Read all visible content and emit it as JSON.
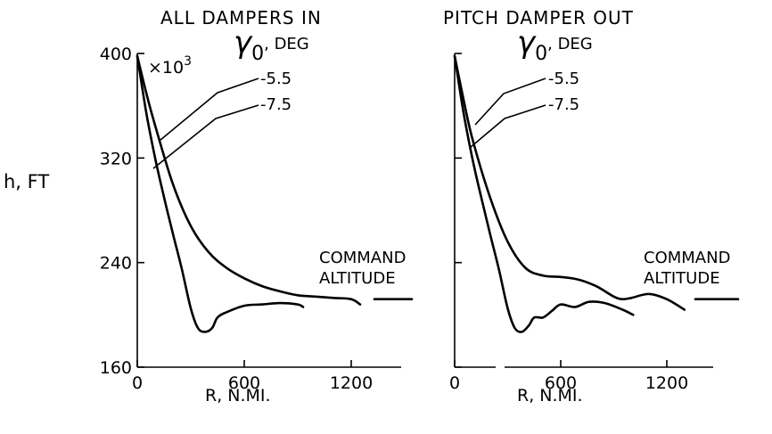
{
  "y_axis": {
    "label": "h, FT",
    "multiplier": "×10",
    "multiplier_exp": "3"
  },
  "legend": {
    "gamma_symbol": "γ",
    "gamma_sub": "0",
    "gamma_unit": ", DEG",
    "values": [
      "-5.5",
      "-7.5"
    ]
  },
  "command_altitude": {
    "line1": "COMMAND",
    "line2": "ALTITUDE"
  },
  "chart_data": [
    {
      "type": "line",
      "title": "ALL DAMPERS IN",
      "xlabel": "R, N.MI.",
      "ylabel": "h, FT",
      "xlim": [
        0,
        1500
      ],
      "ylim": [
        160,
        400
      ],
      "x_ticks": [
        0,
        600,
        1200
      ],
      "y_ticks": [
        160,
        240,
        320,
        400
      ],
      "command_altitude_value": 212,
      "series": [
        {
          "name": "-5.5",
          "points": [
            [
              0,
              398
            ],
            [
              50,
              370
            ],
            [
              100,
              345
            ],
            [
              200,
              300
            ],
            [
              300,
              268
            ],
            [
              400,
              248
            ],
            [
              500,
              236
            ],
            [
              600,
              228
            ],
            [
              700,
              222
            ],
            [
              800,
              218
            ],
            [
              900,
              215
            ],
            [
              1000,
              214
            ],
            [
              1100,
              213
            ],
            [
              1200,
              212
            ],
            [
              1250,
              208
            ]
          ]
        },
        {
          "name": "-7.5",
          "points": [
            [
              0,
              398
            ],
            [
              50,
              355
            ],
            [
              100,
              320
            ],
            [
              150,
              290
            ],
            [
              200,
              262
            ],
            [
              250,
              235
            ],
            [
              300,
              205
            ],
            [
              340,
              190
            ],
            [
              380,
              187
            ],
            [
              420,
              190
            ],
            [
              450,
              198
            ],
            [
              500,
              202
            ],
            [
              600,
              207
            ],
            [
              700,
              208
            ],
            [
              800,
              209
            ],
            [
              900,
              208
            ],
            [
              930,
              206
            ]
          ]
        }
      ]
    },
    {
      "type": "line",
      "title": "PITCH DAMPER OUT",
      "xlabel": "R, N.MI.",
      "ylabel": "h, FT",
      "xlim": [
        0,
        1500
      ],
      "ylim": [
        160,
        400
      ],
      "x_ticks": [
        0,
        600,
        1200
      ],
      "y_ticks": [
        160,
        240,
        320,
        400
      ],
      "command_altitude_value": 212,
      "series": [
        {
          "name": "-5.5",
          "points": [
            [
              0,
              398
            ],
            [
              50,
              365
            ],
            [
              100,
              335
            ],
            [
              200,
              290
            ],
            [
              300,
              256
            ],
            [
              400,
              236
            ],
            [
              500,
              230
            ],
            [
              600,
              229
            ],
            [
              700,
              227
            ],
            [
              800,
              222
            ],
            [
              900,
              214
            ],
            [
              950,
              212
            ],
            [
              1000,
              213
            ],
            [
              1100,
              216
            ],
            [
              1200,
              212
            ],
            [
              1300,
              204
            ]
          ]
        },
        {
          "name": "-7.5",
          "points": [
            [
              0,
              398
            ],
            [
              50,
              355
            ],
            [
              100,
              320
            ],
            [
              150,
              290
            ],
            [
              200,
              262
            ],
            [
              250,
              235
            ],
            [
              300,
              205
            ],
            [
              340,
              190
            ],
            [
              380,
              187
            ],
            [
              420,
              192
            ],
            [
              450,
              198
            ],
            [
              500,
              198
            ],
            [
              550,
              203
            ],
            [
              600,
              208
            ],
            [
              680,
              206
            ],
            [
              760,
              210
            ],
            [
              850,
              209
            ],
            [
              950,
              204
            ],
            [
              1010,
              200
            ]
          ]
        }
      ]
    }
  ]
}
